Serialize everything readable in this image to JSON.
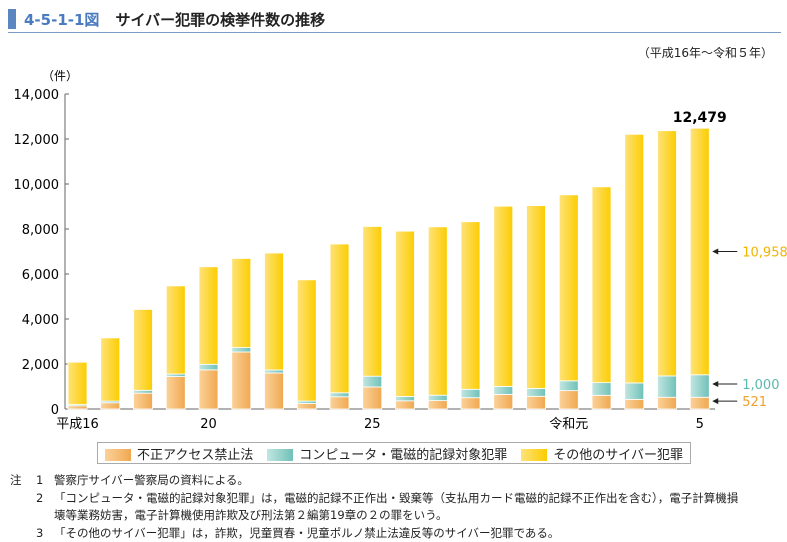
{
  "header": {
    "figure_number": "4-5-1-1図",
    "title": "サイバー犯罪の検挙件数の推移"
  },
  "period": "（平成16年～令和５年）",
  "chart_data": {
    "type": "bar",
    "stacked": true,
    "ylabel": "（件）",
    "ylim": [
      0,
      14000
    ],
    "yticks": [
      0,
      2000,
      4000,
      6000,
      8000,
      10000,
      12000,
      14000
    ],
    "ytick_labels": [
      "0",
      "2,000",
      "4,000",
      "6,000",
      "8,000",
      "10,000",
      "12,000",
      "14,000"
    ],
    "categories": [
      "平成16",
      "17",
      "18",
      "19",
      "20",
      "21",
      "22",
      "23",
      "24",
      "25",
      "26",
      "27",
      "28",
      "29",
      "30",
      "令和元",
      "2",
      "3",
      "4",
      "5"
    ],
    "x_tick_labels": {
      "0": "平成16",
      "4": "20",
      "9": "25",
      "15": "令和元",
      "19": "5"
    },
    "series": [
      {
        "name": "不正アクセス禁止法",
        "color": "#f4b565",
        "values": [
          142,
          277,
          703,
          1442,
          1740,
          2534,
          1601,
          248,
          543,
          980,
          364,
          373,
          502,
          648,
          564,
          816,
          609,
          429,
          522,
          521
        ]
      },
      {
        "name": "コンピュータ・電磁的記録対象犯罪",
        "color": "#8fd0c8",
        "values": [
          55,
          73,
          129,
          113,
          247,
          195,
          133,
          105,
          178,
          478,
          192,
          240,
          374,
          355,
          349,
          436,
          563,
          729,
          948,
          1000
        ]
      },
      {
        "name": "その他のサイバー犯罪",
        "color": "#fcd030",
        "values": [
          1884,
          2811,
          3593,
          3918,
          4334,
          3961,
          5199,
          5388,
          6613,
          6655,
          7349,
          7483,
          7448,
          8011,
          8127,
          8267,
          8703,
          11051,
          10899,
          10958
        ]
      }
    ],
    "annotations": {
      "total_last": "12,479",
      "other_last": "10,958",
      "computer_last": "1,000",
      "access_last": "521"
    },
    "legend_placement": "bottom"
  },
  "notes": {
    "label": "注",
    "items": [
      {
        "n": "1",
        "text": "警察庁サイバー警察局の資料による。"
      },
      {
        "n": "2",
        "text": "「コンピュータ・電磁的記録対象犯罪」は，電磁的記録不正作出・毀棄等（支払用カード電磁的記録不正作出を含む），電子計算機損"
      },
      {
        "n": "",
        "text": "壊等業務妨害，電子計算機使用詐欺及び刑法第２編第19章の２の罪をいう。"
      },
      {
        "n": "3",
        "text": "「その他のサイバー犯罪」は，詐欺，児童買春・児童ポルノ禁止法違反等のサイバー犯罪である。"
      }
    ]
  }
}
